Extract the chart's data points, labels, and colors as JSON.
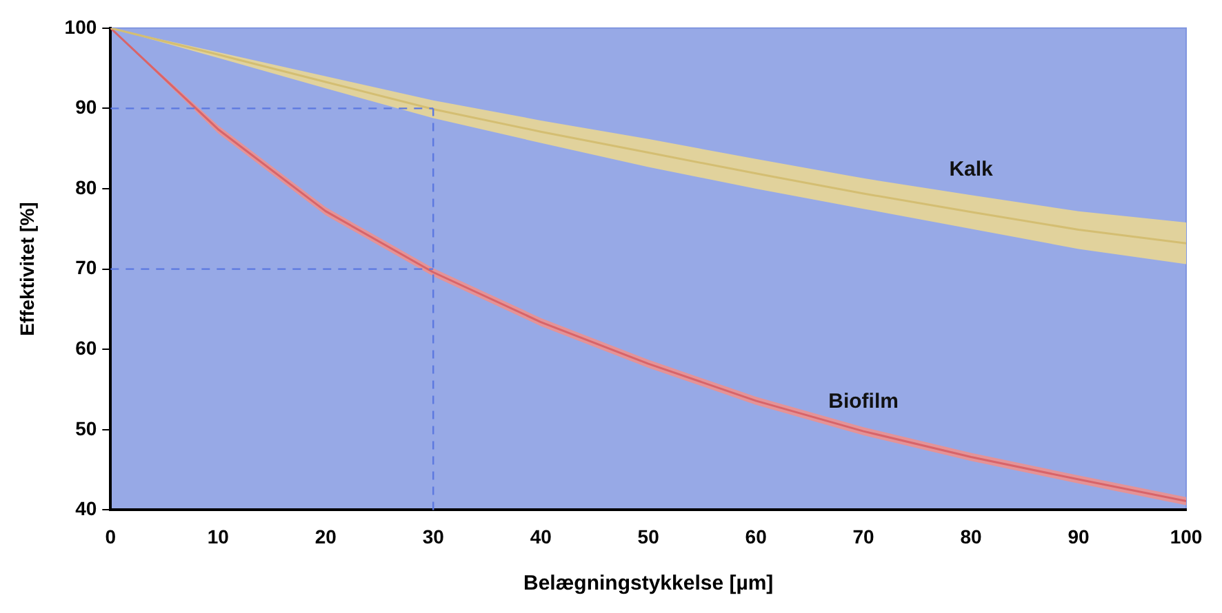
{
  "chart_data": {
    "type": "line",
    "xlabel": "Belægningstykkelse [µm]",
    "ylabel": "Effektivitet [%]",
    "x": [
      0,
      10,
      20,
      30,
      40,
      50,
      60,
      70,
      80,
      90,
      100
    ],
    "xlim": [
      0,
      100
    ],
    "xticks": [
      0,
      10,
      20,
      30,
      40,
      50,
      60,
      70,
      80,
      90,
      100
    ],
    "ylim": [
      40,
      100
    ],
    "yticks": [
      40,
      50,
      60,
      70,
      80,
      90,
      100
    ],
    "grid": false,
    "legend": false,
    "marker": "none",
    "line_style": "solid",
    "series": [
      {
        "name": "Kalk",
        "color": "#d4be72",
        "values": [
          100,
          96.7,
          93.3,
          89.9,
          87.1,
          84.5,
          81.9,
          79.4,
          77.1,
          74.9,
          73.2
        ],
        "upper": [
          100,
          97,
          94,
          91,
          88.5,
          86.2,
          83.7,
          81.3,
          79.2,
          77.2,
          75.8
        ],
        "lower": [
          100,
          96.3,
          92.5,
          88.8,
          85.7,
          82.7,
          80,
          77.5,
          75,
          72.5,
          70.6
        ]
      },
      {
        "name": "Biofilm",
        "color": "#d8646a",
        "values": [
          100,
          87.4,
          77.2,
          69.6,
          63.4,
          58.2,
          53.6,
          49.8,
          46.6,
          43.8,
          41.1
        ],
        "upper": [
          100,
          87.9,
          77.7,
          70.1,
          63.9,
          58.7,
          54.1,
          50.3,
          47.1,
          44.3,
          41.6
        ],
        "lower": [
          100,
          86.9,
          76.7,
          69.1,
          62.9,
          57.7,
          53.1,
          49.3,
          46.1,
          43.3,
          40.6
        ]
      }
    ],
    "ref_lines": [
      {
        "axis": "x",
        "value": 30,
        "color": "#5c78e0",
        "line_style": "dashed"
      },
      {
        "axis": "y",
        "value": 90,
        "color": "#5c78e0",
        "line_style": "dashed"
      },
      {
        "axis": "y",
        "value": 70,
        "color": "#5c78e0",
        "line_style": "dashed"
      }
    ]
  }
}
